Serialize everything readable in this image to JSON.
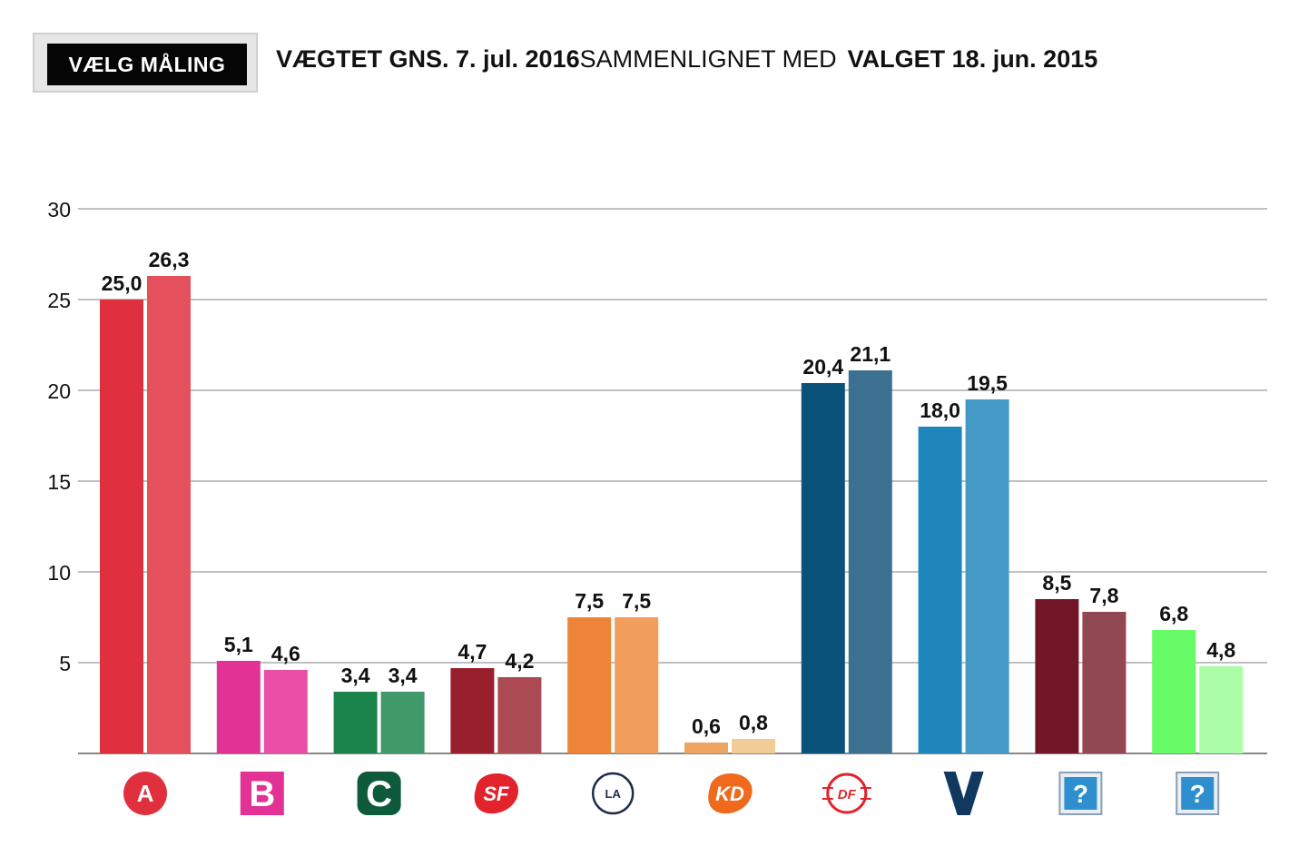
{
  "controls": {
    "select_label": "VÆLG MÅLING"
  },
  "header": {
    "left_label": "VÆGTET GNS. 7. jul. 2016",
    "compare_label": "SAMMENLIGNET MED",
    "right_label": "VALGET 18. jun. 2015"
  },
  "colors": {
    "gridline": "#9a9a9a",
    "axis": "#888888",
    "label": "#111111"
  },
  "chart_data": {
    "type": "bar",
    "title": "",
    "xlabel": "",
    "ylabel": "",
    "ylim": [
      0,
      30
    ],
    "yticks": [
      5,
      10,
      15,
      20,
      25,
      30
    ],
    "ytick_labels": [
      "5",
      "10",
      "15",
      "20",
      "25",
      "30"
    ],
    "grid": true,
    "categories": [
      "A",
      "B",
      "C",
      "SF",
      "LA",
      "KD",
      "DF",
      "V",
      "?",
      "?"
    ],
    "series": [
      {
        "values": [
          25.0,
          5.1,
          3.4,
          4.7,
          7.5,
          0.6,
          20.4,
          18.0,
          8.5,
          6.8
        ],
        "labels": [
          "25,0",
          "5,1",
          "3,4",
          "4,7",
          "7,5",
          "0,6",
          "20,4",
          "18,0",
          "8,5",
          "6,8"
        ],
        "colors": [
          "#e0303e",
          "#e33296",
          "#1b844b",
          "#9a1f2d",
          "#ef8438",
          "#eda55f",
          "#0a527a",
          "#1e86ba",
          "#731628",
          "#68fb68"
        ]
      },
      {
        "values": [
          26.3,
          4.6,
          3.4,
          4.2,
          7.5,
          0.8,
          21.1,
          19.5,
          7.8,
          4.8
        ],
        "labels": [
          "26,3",
          "4,6",
          "3,4",
          "4,2",
          "7,5",
          "0,8",
          "21,1",
          "19,5",
          "7,8",
          "4,8"
        ],
        "colors": [
          "#e4515d",
          "#eb4ea6",
          "#3f9969",
          "#ab4a53",
          "#f09d5d",
          "#f2cc96",
          "#3b7090",
          "#4599c6",
          "#914850",
          "#acfda8"
        ]
      }
    ],
    "party_icons": [
      {
        "kind": "circle",
        "text": "A",
        "color": "#e0303e",
        "name": "party-a-icon"
      },
      {
        "kind": "square",
        "text": "B",
        "color": "#e33296",
        "name": "party-b-icon"
      },
      {
        "kind": "rounded",
        "text": "C",
        "color": "#0e5a3a",
        "name": "party-c-icon"
      },
      {
        "kind": "blob",
        "text": "SF",
        "color": "#e2232b",
        "name": "party-sf-icon"
      },
      {
        "kind": "ring",
        "text": "LA",
        "color": "#1f2e48",
        "name": "party-la-icon"
      },
      {
        "kind": "blob",
        "text": "KD",
        "color": "#ef6a1d",
        "name": "party-kd-icon"
      },
      {
        "kind": "df",
        "text": "DF",
        "color": "#e2232b",
        "name": "party-df-icon"
      },
      {
        "kind": "v",
        "text": "V",
        "color": "#11395f",
        "name": "party-v-icon"
      },
      {
        "kind": "unknown",
        "text": "?",
        "color": "#2d8fce",
        "name": "party-unknown-icon"
      },
      {
        "kind": "unknown",
        "text": "?",
        "color": "#2d8fce",
        "name": "party-unknown-icon"
      }
    ]
  }
}
